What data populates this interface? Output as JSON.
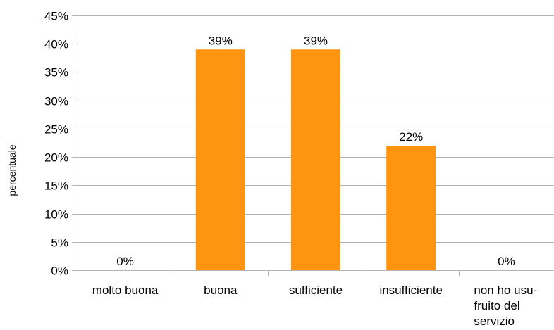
{
  "chart_data": {
    "type": "bar",
    "categories": [
      [
        "molto buona"
      ],
      [
        "buona"
      ],
      [
        "sufficiente"
      ],
      [
        "insufficiente"
      ],
      [
        "non ho usu-",
        "fruito del",
        "servizio"
      ]
    ],
    "values": [
      0,
      39,
      39,
      22,
      0
    ],
    "value_labels": [
      "0%",
      "39%",
      "39%",
      "22%",
      "0%"
    ],
    "ylabel": "percentuale",
    "xlabel": "",
    "ylim": [
      0,
      45
    ],
    "y_ticks": [
      0,
      5,
      10,
      15,
      20,
      25,
      30,
      35,
      40,
      45
    ],
    "y_tick_suffix": "%",
    "grid": true,
    "bar_color": "#ff9411",
    "grid_color": "#b3b3b3"
  }
}
